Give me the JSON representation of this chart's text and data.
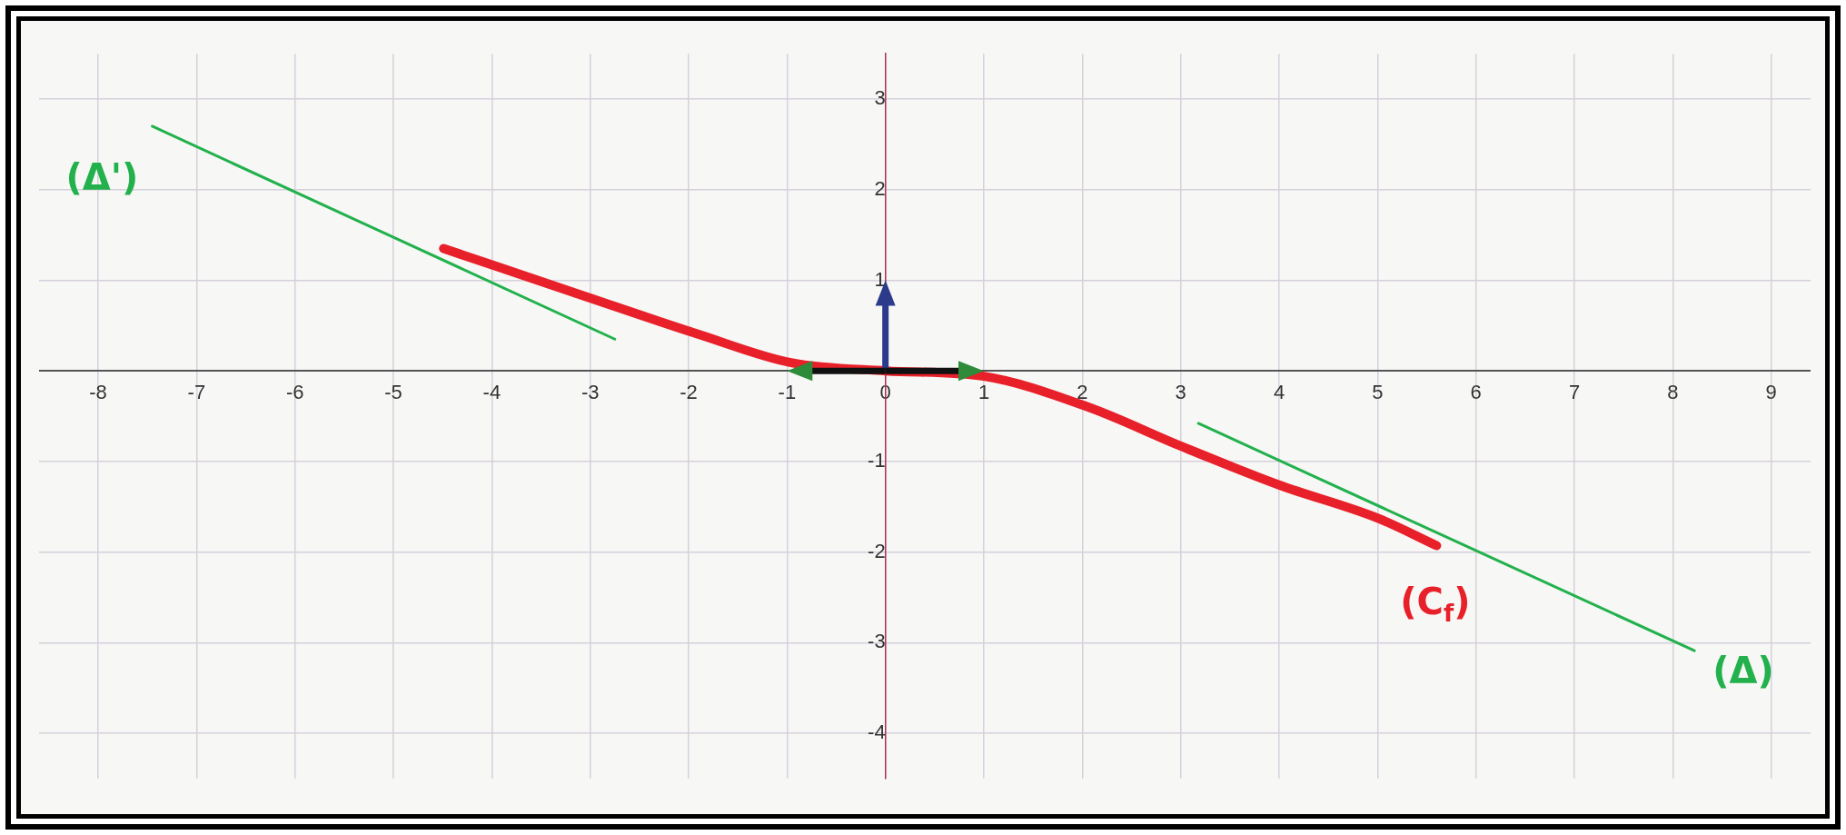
{
  "chart_data": {
    "type": "line",
    "xlim": [
      -8.6,
      9.4
    ],
    "ylim": [
      -4.5,
      3.5
    ],
    "xticks": [
      -8,
      -7,
      -6,
      -5,
      -4,
      -3,
      -2,
      -1,
      0,
      1,
      2,
      3,
      4,
      5,
      6,
      7,
      8,
      9
    ],
    "yticks": [
      -4,
      -3,
      -2,
      -1,
      {
        "value": 0,
        "label": null
      },
      1,
      2,
      3
    ],
    "grid": true,
    "legend": false,
    "series": [
      {
        "name": "(Δ')",
        "color": "#22b14c",
        "x": [
          -7.45,
          -2.75
        ],
        "values": [
          2.7,
          0.35
        ]
      },
      {
        "name": "(Δ)",
        "color": "#22b14c",
        "x": [
          3.18,
          8.22
        ],
        "values": [
          -0.58,
          -3.09
        ]
      },
      {
        "name": "(C$_{f}$)",
        "color": "#e8202a",
        "x": [
          -4.49,
          -3.07,
          -1.89,
          -0.96,
          0,
          1,
          2.06,
          3,
          4,
          5.01,
          5.6
        ],
        "values": [
          1.35,
          0.83,
          0.4,
          0.09,
          0,
          -0.06,
          -0.4,
          -0.83,
          -1.26,
          -1.63,
          -1.93
        ]
      }
    ]
  }
}
